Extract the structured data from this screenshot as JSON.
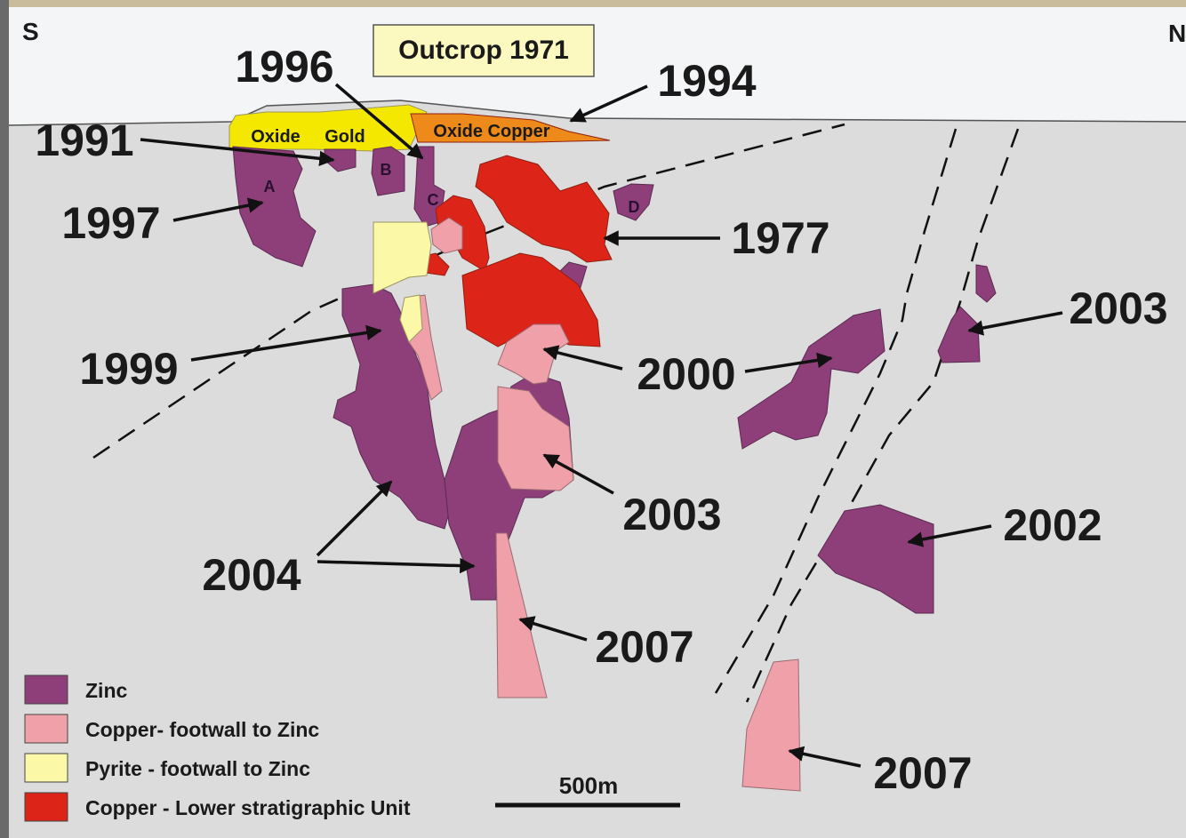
{
  "orientation": {
    "south": "S",
    "north": "N"
  },
  "outcrop": "Outcrop 1971",
  "surface_units": [
    "Oxide",
    "Gold",
    "Oxide Copper"
  ],
  "lenses": [
    "A",
    "B",
    "C",
    "D"
  ],
  "discoveries": [
    "1996",
    "1994",
    "1991",
    "1997",
    "1977",
    "2003",
    "1999",
    "2000",
    "2003",
    "2004",
    "2002",
    "2007",
    "2007"
  ],
  "legend": [
    "Zinc",
    "Copper- footwall to Zinc",
    "Pyrite - footwall to Zinc",
    "Copper - Lower stratigraphic Unit"
  ],
  "scale": "500m"
}
